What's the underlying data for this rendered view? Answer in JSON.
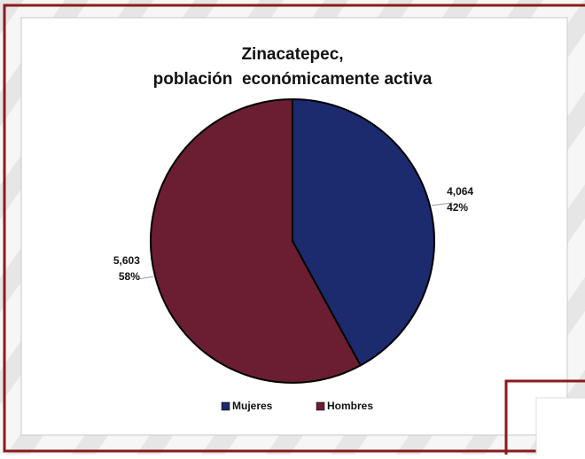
{
  "chart_data": {
    "type": "pie",
    "title": [
      "Zinacatepec,",
      "población  económicamente activa"
    ],
    "categories": [
      "Mujeres",
      "Hombres"
    ],
    "values": [
      4064,
      5603
    ],
    "value_labels": [
      "4,064",
      "5,603"
    ],
    "percents": [
      42,
      58
    ],
    "percent_labels": [
      "42%",
      "58%"
    ],
    "colors": [
      "#1c2a6e",
      "#6b1e31"
    ],
    "legend": "bottom"
  }
}
